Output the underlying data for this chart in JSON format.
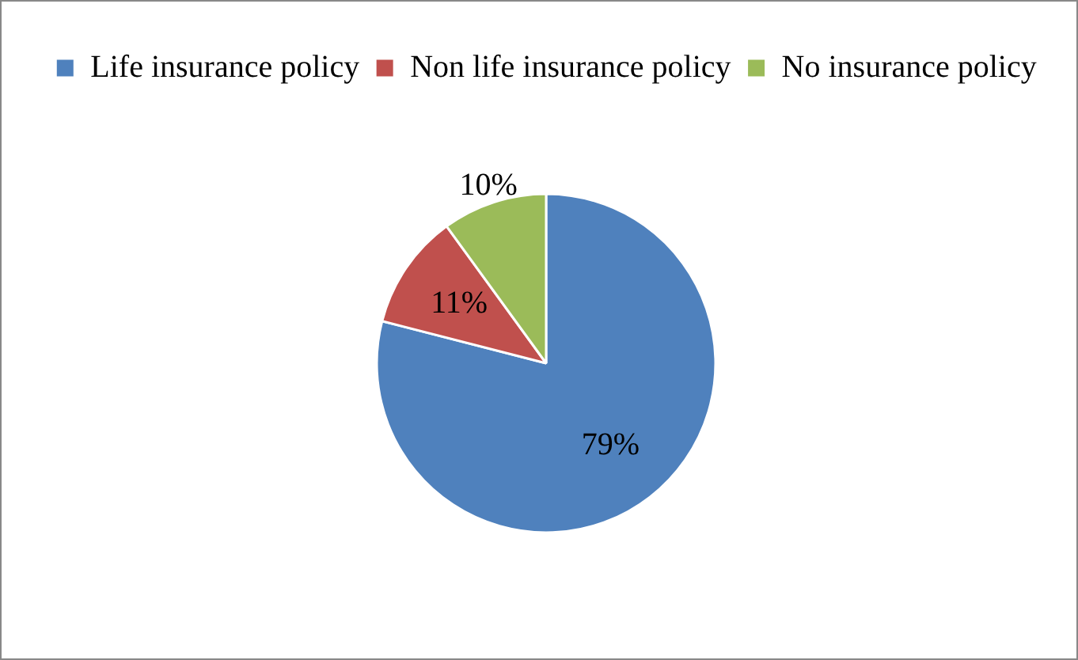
{
  "chart_data": {
    "type": "pie",
    "categories": [
      "Life insurance policy",
      "Non life insurance policy",
      "No insurance policy"
    ],
    "values": [
      79,
      11,
      10
    ],
    "colors": [
      "#4f81bd",
      "#c0504d",
      "#9bbb59"
    ],
    "value_labels": [
      "79%",
      "11%",
      "10%"
    ],
    "legend": "top"
  }
}
